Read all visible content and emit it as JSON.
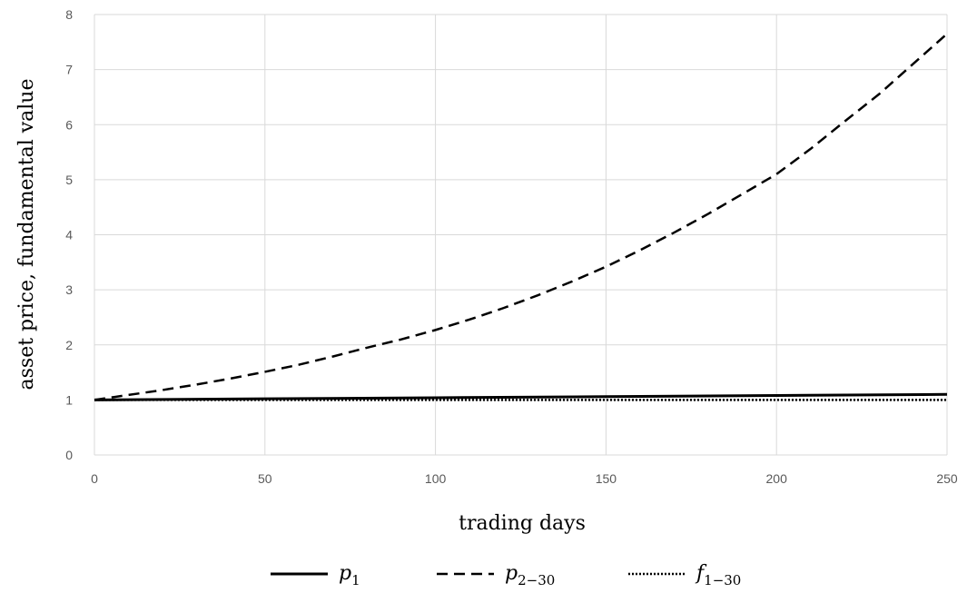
{
  "chart_data": {
    "type": "line",
    "title": "",
    "xlabel": "trading days",
    "ylabel": "asset price, fundamental value",
    "xlim": [
      0,
      250
    ],
    "ylim": [
      0,
      8
    ],
    "x_ticks": [
      "0",
      "50",
      "100",
      "150",
      "200",
      "250"
    ],
    "y_ticks": [
      "0",
      "1",
      "2",
      "3",
      "4",
      "5",
      "6",
      "7",
      "8"
    ],
    "grid": true,
    "legend_position": "bottom",
    "series": [
      {
        "name_base": "p",
        "name_sub": "1",
        "style": "solid",
        "color": "#000000",
        "x": [
          0,
          50,
          100,
          150,
          200,
          250
        ],
        "y": [
          1.0,
          1.02,
          1.04,
          1.06,
          1.08,
          1.1
        ]
      },
      {
        "name_base": "p",
        "name_sub": "2−30",
        "style": "dashed",
        "color": "#000000",
        "x": [
          0,
          10,
          20,
          30,
          40,
          50,
          60,
          70,
          80,
          90,
          100,
          110,
          120,
          130,
          140,
          150,
          160,
          170,
          180,
          190,
          200,
          210,
          220,
          230,
          240,
          250
        ],
        "y": [
          1.0,
          1.09,
          1.18,
          1.28,
          1.39,
          1.51,
          1.64,
          1.79,
          1.95,
          2.1,
          2.27,
          2.46,
          2.67,
          2.9,
          3.15,
          3.42,
          3.72,
          4.04,
          4.38,
          4.74,
          5.1,
          5.56,
          6.06,
          6.55,
          7.1,
          7.65
        ]
      },
      {
        "name_base": "f",
        "name_sub": "1−30",
        "style": "dotted",
        "color": "#000000",
        "x": [
          0,
          250
        ],
        "y": [
          1.0,
          1.0
        ]
      }
    ]
  },
  "colors": {
    "grid": "#d9d9d9",
    "tick_text": "#595959",
    "line": "#000000"
  }
}
